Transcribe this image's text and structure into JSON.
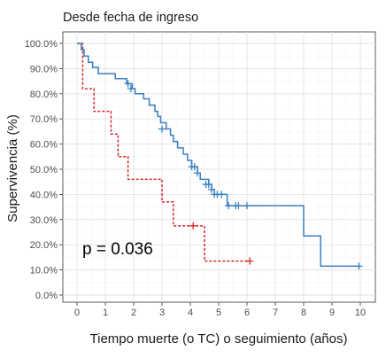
{
  "chart_data": {
    "type": "line",
    "subtype": "kaplan-meier survival curve",
    "title": "Desde fecha de ingreso",
    "xlabel": "Tiempo muerte (o TC) o seguimiento (años)",
    "ylabel": "Supervivencia (%)",
    "xlim": [
      0,
      10
    ],
    "ylim": [
      0,
      1
    ],
    "x_ticks": [
      0,
      1,
      2,
      3,
      4,
      5,
      6,
      7,
      8,
      9,
      10
    ],
    "x_tick_labels": [
      "0",
      "1",
      "2",
      "3",
      "4",
      "5",
      "6",
      "7",
      "8",
      "9",
      "10"
    ],
    "y_ticks": [
      0,
      0.1,
      0.2,
      0.3,
      0.4,
      0.5,
      0.6,
      0.7,
      0.8,
      0.9,
      1.0
    ],
    "y_tick_labels": [
      "0.0%",
      "10.0%",
      "20.0%",
      "30.0%",
      "40.0%",
      "50.0%",
      "60.0%",
      "70.0%",
      "80.0%",
      "90.0%",
      "100.0%"
    ],
    "grid": true,
    "annotation": "p = 0.036",
    "series": [
      {
        "color": "#d62728",
        "line_style": "dashed",
        "steps": [
          [
            0,
            1.0
          ],
          [
            0.2,
            0.82
          ],
          [
            0.6,
            0.73
          ],
          [
            1.2,
            0.64
          ],
          [
            1.45,
            0.55
          ],
          [
            1.8,
            0.46
          ],
          [
            3.0,
            0.37
          ],
          [
            3.4,
            0.275
          ],
          [
            4.5,
            0.135
          ],
          [
            6.1,
            0.135
          ]
        ],
        "censored": [
          [
            4.1,
            0.275
          ],
          [
            6.1,
            0.135
          ]
        ]
      },
      {
        "color": "#3a7fc1",
        "line_style": "solid",
        "steps": [
          [
            0,
            1.0
          ],
          [
            0.15,
            0.975
          ],
          [
            0.25,
            0.95
          ],
          [
            0.4,
            0.925
          ],
          [
            0.55,
            0.905
          ],
          [
            0.75,
            0.88
          ],
          [
            1.35,
            0.86
          ],
          [
            1.75,
            0.84
          ],
          [
            1.95,
            0.82
          ],
          [
            2.05,
            0.8
          ],
          [
            2.35,
            0.78
          ],
          [
            2.55,
            0.755
          ],
          [
            2.75,
            0.73
          ],
          [
            2.85,
            0.71
          ],
          [
            2.95,
            0.685
          ],
          [
            3.15,
            0.66
          ],
          [
            3.3,
            0.635
          ],
          [
            3.4,
            0.61
          ],
          [
            3.55,
            0.585
          ],
          [
            3.75,
            0.56
          ],
          [
            3.9,
            0.535
          ],
          [
            4.05,
            0.51
          ],
          [
            4.25,
            0.485
          ],
          [
            4.35,
            0.46
          ],
          [
            4.65,
            0.44
          ],
          [
            4.75,
            0.42
          ],
          [
            4.85,
            0.4
          ],
          [
            5.3,
            0.355
          ],
          [
            7.95,
            0.355
          ],
          [
            8.0,
            0.235
          ],
          [
            8.6,
            0.115
          ],
          [
            10.0,
            0.115
          ]
        ],
        "censored": [
          [
            1.8,
            0.84
          ],
          [
            1.9,
            0.82
          ],
          [
            3.0,
            0.66
          ],
          [
            4.05,
            0.51
          ],
          [
            4.15,
            0.51
          ],
          [
            4.25,
            0.485
          ],
          [
            4.55,
            0.44
          ],
          [
            4.65,
            0.44
          ],
          [
            4.75,
            0.42
          ],
          [
            4.85,
            0.4
          ],
          [
            4.95,
            0.4
          ],
          [
            5.1,
            0.4
          ],
          [
            5.35,
            0.355
          ],
          [
            5.6,
            0.355
          ],
          [
            5.7,
            0.355
          ],
          [
            6.0,
            0.355
          ],
          [
            9.95,
            0.115
          ]
        ]
      }
    ]
  }
}
